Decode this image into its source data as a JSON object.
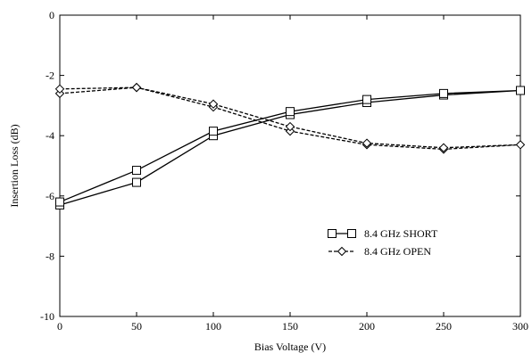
{
  "chart_data": {
    "type": "line",
    "xlabel": "Bias Voltage (V)",
    "ylabel": "Insertion Loss (dB)",
    "xlim": [
      0,
      300
    ],
    "ylim": [
      -10,
      0
    ],
    "xticks": [
      0,
      50,
      100,
      150,
      200,
      250,
      300
    ],
    "yticks": [
      0,
      -2,
      -4,
      -6,
      -8,
      -10
    ],
    "grid": false,
    "legend_position": "center-right",
    "series": [
      {
        "name": "8.4 GHz SHORT",
        "marker": "square",
        "line_style": "solid",
        "color": "#000000",
        "x": [
          0,
          50,
          100,
          150,
          200,
          250,
          300,
          250,
          200,
          150,
          100,
          50,
          0
        ],
        "y": [
          -6.3,
          -5.55,
          -4.0,
          -3.3,
          -2.9,
          -2.65,
          -2.5,
          -2.6,
          -2.8,
          -3.2,
          -3.85,
          -5.15,
          -6.2
        ]
      },
      {
        "name": "8.4 GHz OPEN",
        "marker": "diamond",
        "line_style": "dashed",
        "color": "#000000",
        "x": [
          0,
          50,
          100,
          150,
          200,
          250,
          300,
          250,
          200,
          150,
          100,
          50,
          0
        ],
        "y": [
          -2.6,
          -2.4,
          -3.05,
          -3.85,
          -4.3,
          -4.45,
          -4.3,
          -4.4,
          -4.25,
          -3.7,
          -2.95,
          -2.4,
          -2.45
        ]
      }
    ]
  }
}
